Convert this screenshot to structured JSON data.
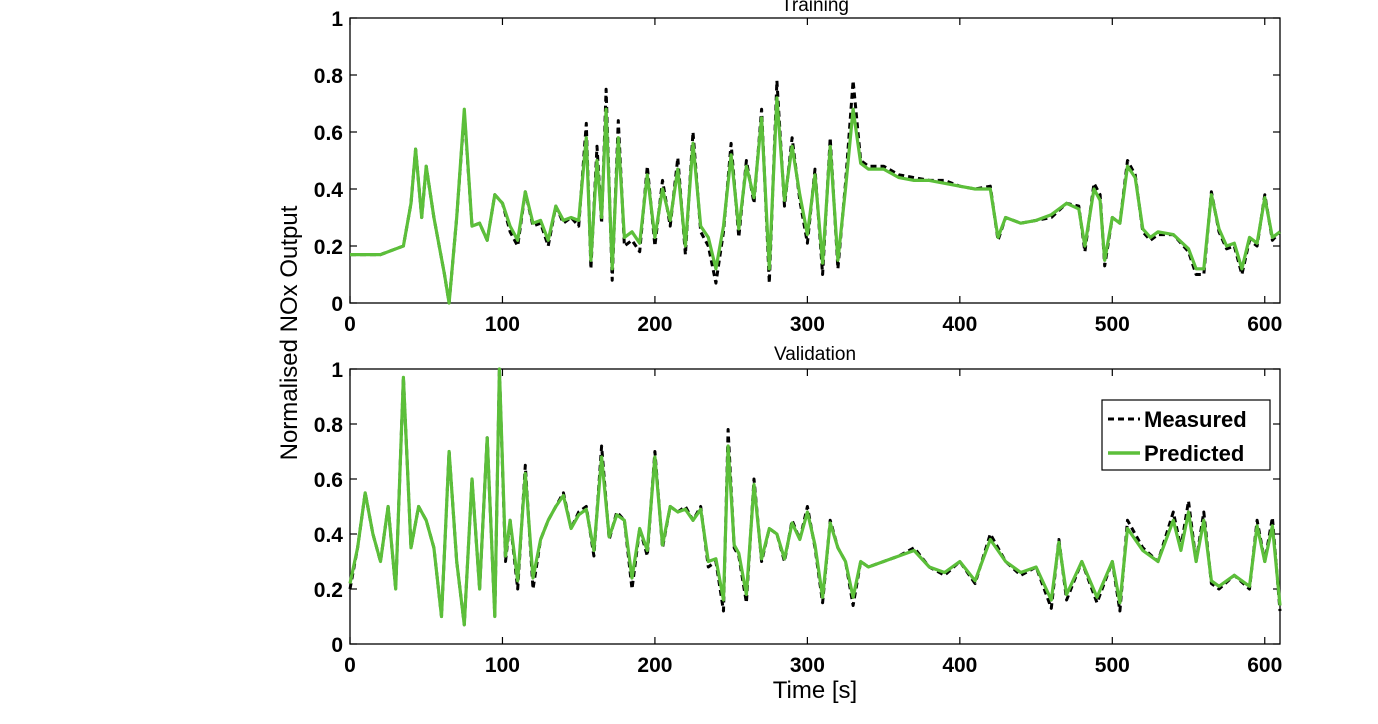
{
  "figure": {
    "ylabel": "Normalised NOx Output",
    "xlabel": "Time [s]"
  },
  "chart_data": [
    {
      "type": "line",
      "title": "Training",
      "xlim": [
        0,
        610
      ],
      "ylim": [
        0,
        1
      ],
      "xticks": [
        "0",
        "100",
        "200",
        "300",
        "400",
        "500",
        "600"
      ],
      "yticks": [
        "0",
        "0.2",
        "0.4",
        "0.6",
        "0.8",
        "1"
      ],
      "legend": null,
      "grid": false,
      "series": [
        {
          "name": "Measured",
          "color": "#000000",
          "style": "dashed",
          "x": [
            0,
            20,
            35,
            40,
            43,
            47,
            50,
            55,
            62,
            65,
            70,
            75,
            80,
            85,
            90,
            95,
            100,
            105,
            110,
            115,
            120,
            125,
            130,
            135,
            140,
            145,
            150,
            155,
            158,
            162,
            165,
            168,
            172,
            176,
            180,
            185,
            190,
            195,
            200,
            205,
            210,
            215,
            220,
            225,
            230,
            235,
            240,
            245,
            250,
            255,
            260,
            265,
            270,
            275,
            280,
            285,
            290,
            295,
            300,
            305,
            310,
            315,
            320,
            325,
            330,
            335,
            340,
            350,
            360,
            370,
            380,
            390,
            400,
            410,
            420,
            425,
            430,
            440,
            450,
            460,
            470,
            478,
            482,
            488,
            492,
            495,
            500,
            505,
            510,
            515,
            520,
            525,
            530,
            540,
            550,
            555,
            560,
            565,
            570,
            575,
            580,
            585,
            590,
            595,
            600,
            605,
            610
          ],
          "y": [
            0.17,
            0.17,
            0.2,
            0.35,
            0.54,
            0.3,
            0.48,
            0.3,
            0.1,
            0.0,
            0.3,
            0.67,
            0.27,
            0.28,
            0.22,
            0.38,
            0.35,
            0.25,
            0.2,
            0.39,
            0.27,
            0.28,
            0.2,
            0.34,
            0.28,
            0.3,
            0.27,
            0.63,
            0.12,
            0.55,
            0.28,
            0.75,
            0.08,
            0.64,
            0.2,
            0.22,
            0.18,
            0.48,
            0.2,
            0.43,
            0.27,
            0.51,
            0.17,
            0.6,
            0.25,
            0.2,
            0.07,
            0.25,
            0.56,
            0.23,
            0.5,
            0.35,
            0.68,
            0.07,
            0.78,
            0.34,
            0.58,
            0.36,
            0.21,
            0.47,
            0.1,
            0.58,
            0.12,
            0.42,
            0.78,
            0.5,
            0.48,
            0.48,
            0.45,
            0.44,
            0.43,
            0.43,
            0.41,
            0.4,
            0.41,
            0.22,
            0.3,
            0.28,
            0.29,
            0.3,
            0.35,
            0.34,
            0.18,
            0.42,
            0.38,
            0.13,
            0.3,
            0.28,
            0.5,
            0.45,
            0.25,
            0.22,
            0.24,
            0.24,
            0.18,
            0.1,
            0.1,
            0.39,
            0.25,
            0.19,
            0.2,
            0.1,
            0.22,
            0.2,
            0.38,
            0.22,
            0.25
          ]
        },
        {
          "name": "Predicted",
          "color": "#5cbf3a",
          "style": "solid",
          "x": [
            0,
            20,
            35,
            40,
            43,
            47,
            50,
            55,
            62,
            65,
            70,
            75,
            80,
            85,
            90,
            95,
            100,
            105,
            110,
            115,
            120,
            125,
            130,
            135,
            140,
            145,
            150,
            155,
            158,
            162,
            165,
            168,
            172,
            176,
            180,
            185,
            190,
            195,
            200,
            205,
            210,
            215,
            220,
            225,
            230,
            235,
            240,
            245,
            250,
            255,
            260,
            265,
            270,
            275,
            280,
            285,
            290,
            295,
            300,
            305,
            310,
            315,
            320,
            325,
            330,
            335,
            340,
            350,
            360,
            370,
            380,
            390,
            400,
            410,
            420,
            425,
            430,
            440,
            450,
            460,
            470,
            478,
            482,
            488,
            492,
            495,
            500,
            505,
            510,
            515,
            520,
            525,
            530,
            540,
            550,
            555,
            560,
            565,
            570,
            575,
            580,
            585,
            590,
            595,
            600,
            605,
            610
          ],
          "y": [
            0.17,
            0.17,
            0.2,
            0.35,
            0.54,
            0.3,
            0.48,
            0.3,
            0.1,
            0.0,
            0.3,
            0.68,
            0.27,
            0.28,
            0.22,
            0.38,
            0.35,
            0.27,
            0.22,
            0.39,
            0.28,
            0.29,
            0.22,
            0.34,
            0.29,
            0.3,
            0.29,
            0.58,
            0.15,
            0.5,
            0.3,
            0.68,
            0.12,
            0.58,
            0.23,
            0.25,
            0.21,
            0.45,
            0.23,
            0.4,
            0.29,
            0.47,
            0.2,
            0.56,
            0.27,
            0.23,
            0.12,
            0.27,
            0.52,
            0.26,
            0.48,
            0.37,
            0.65,
            0.12,
            0.72,
            0.36,
            0.55,
            0.38,
            0.24,
            0.45,
            0.14,
            0.55,
            0.15,
            0.4,
            0.68,
            0.49,
            0.47,
            0.47,
            0.44,
            0.43,
            0.43,
            0.42,
            0.41,
            0.4,
            0.4,
            0.23,
            0.3,
            0.28,
            0.29,
            0.31,
            0.35,
            0.33,
            0.2,
            0.4,
            0.36,
            0.15,
            0.3,
            0.28,
            0.48,
            0.44,
            0.26,
            0.23,
            0.25,
            0.24,
            0.19,
            0.12,
            0.12,
            0.38,
            0.26,
            0.2,
            0.21,
            0.12,
            0.23,
            0.21,
            0.37,
            0.23,
            0.25
          ]
        }
      ]
    },
    {
      "type": "line",
      "title": "Validation",
      "xlim": [
        0,
        610
      ],
      "ylim": [
        0,
        1
      ],
      "xticks": [
        "0",
        "100",
        "200",
        "300",
        "400",
        "500",
        "600"
      ],
      "yticks": [
        "0",
        "0.2",
        "0.4",
        "0.6",
        "0.8",
        "1"
      ],
      "legend": "top-right",
      "grid": false,
      "series": [
        {
          "name": "Measured",
          "color": "#000000",
          "style": "dashed",
          "x": [
            0,
            5,
            10,
            15,
            20,
            25,
            30,
            35,
            40,
            45,
            50,
            55,
            60,
            65,
            70,
            75,
            80,
            85,
            90,
            95,
            98,
            102,
            105,
            110,
            115,
            120,
            125,
            130,
            135,
            140,
            145,
            150,
            155,
            160,
            165,
            170,
            175,
            180,
            185,
            190,
            195,
            200,
            205,
            210,
            215,
            220,
            225,
            230,
            235,
            240,
            245,
            248,
            252,
            255,
            260,
            265,
            270,
            275,
            280,
            285,
            290,
            295,
            300,
            305,
            310,
            315,
            320,
            325,
            330,
            335,
            340,
            350,
            360,
            370,
            380,
            390,
            400,
            410,
            420,
            430,
            440,
            450,
            460,
            465,
            470,
            480,
            490,
            500,
            505,
            510,
            520,
            530,
            540,
            545,
            550,
            555,
            560,
            565,
            570,
            580,
            590,
            595,
            600,
            605,
            610
          ],
          "y": [
            0.2,
            0.35,
            0.55,
            0.4,
            0.3,
            0.5,
            0.2,
            0.97,
            0.35,
            0.5,
            0.45,
            0.35,
            0.1,
            0.7,
            0.3,
            0.07,
            0.6,
            0.2,
            0.75,
            0.1,
            1.0,
            0.3,
            0.45,
            0.2,
            0.65,
            0.2,
            0.38,
            0.45,
            0.5,
            0.55,
            0.42,
            0.48,
            0.5,
            0.32,
            0.72,
            0.38,
            0.48,
            0.45,
            0.2,
            0.42,
            0.32,
            0.7,
            0.35,
            0.5,
            0.48,
            0.5,
            0.45,
            0.5,
            0.28,
            0.3,
            0.12,
            0.78,
            0.35,
            0.32,
            0.15,
            0.6,
            0.3,
            0.42,
            0.4,
            0.3,
            0.45,
            0.38,
            0.5,
            0.35,
            0.15,
            0.45,
            0.35,
            0.3,
            0.14,
            0.3,
            0.28,
            0.3,
            0.32,
            0.35,
            0.28,
            0.25,
            0.3,
            0.22,
            0.4,
            0.3,
            0.25,
            0.28,
            0.13,
            0.38,
            0.16,
            0.3,
            0.15,
            0.3,
            0.12,
            0.45,
            0.35,
            0.3,
            0.48,
            0.35,
            0.52,
            0.3,
            0.48,
            0.22,
            0.2,
            0.25,
            0.2,
            0.45,
            0.3,
            0.46,
            0.12
          ]
        },
        {
          "name": "Predicted",
          "color": "#5cbf3a",
          "style": "solid",
          "x": [
            0,
            5,
            10,
            15,
            20,
            25,
            30,
            35,
            40,
            45,
            50,
            55,
            60,
            65,
            70,
            75,
            80,
            85,
            90,
            95,
            98,
            102,
            105,
            110,
            115,
            120,
            125,
            130,
            135,
            140,
            145,
            150,
            155,
            160,
            165,
            170,
            175,
            180,
            185,
            190,
            195,
            200,
            205,
            210,
            215,
            220,
            225,
            230,
            235,
            240,
            245,
            248,
            252,
            255,
            260,
            265,
            270,
            275,
            280,
            285,
            290,
            295,
            300,
            305,
            310,
            315,
            320,
            325,
            330,
            335,
            340,
            350,
            360,
            370,
            380,
            390,
            400,
            410,
            420,
            430,
            440,
            450,
            460,
            465,
            470,
            480,
            490,
            500,
            505,
            510,
            520,
            530,
            540,
            545,
            550,
            555,
            560,
            565,
            570,
            580,
            590,
            595,
            600,
            605,
            610
          ],
          "y": [
            0.22,
            0.35,
            0.55,
            0.4,
            0.3,
            0.5,
            0.2,
            0.97,
            0.35,
            0.5,
            0.45,
            0.35,
            0.1,
            0.7,
            0.3,
            0.07,
            0.6,
            0.2,
            0.75,
            0.1,
            1.0,
            0.32,
            0.45,
            0.23,
            0.62,
            0.24,
            0.38,
            0.45,
            0.5,
            0.54,
            0.42,
            0.47,
            0.49,
            0.34,
            0.68,
            0.39,
            0.47,
            0.45,
            0.24,
            0.42,
            0.34,
            0.68,
            0.36,
            0.5,
            0.48,
            0.49,
            0.45,
            0.49,
            0.3,
            0.31,
            0.16,
            0.72,
            0.36,
            0.33,
            0.18,
            0.58,
            0.31,
            0.42,
            0.4,
            0.31,
            0.44,
            0.38,
            0.48,
            0.36,
            0.17,
            0.44,
            0.35,
            0.3,
            0.17,
            0.3,
            0.28,
            0.3,
            0.32,
            0.34,
            0.28,
            0.26,
            0.3,
            0.23,
            0.38,
            0.3,
            0.26,
            0.28,
            0.16,
            0.37,
            0.18,
            0.3,
            0.17,
            0.3,
            0.15,
            0.42,
            0.34,
            0.3,
            0.45,
            0.34,
            0.48,
            0.3,
            0.45,
            0.23,
            0.21,
            0.25,
            0.21,
            0.43,
            0.3,
            0.43,
            0.14
          ]
        }
      ]
    }
  ]
}
